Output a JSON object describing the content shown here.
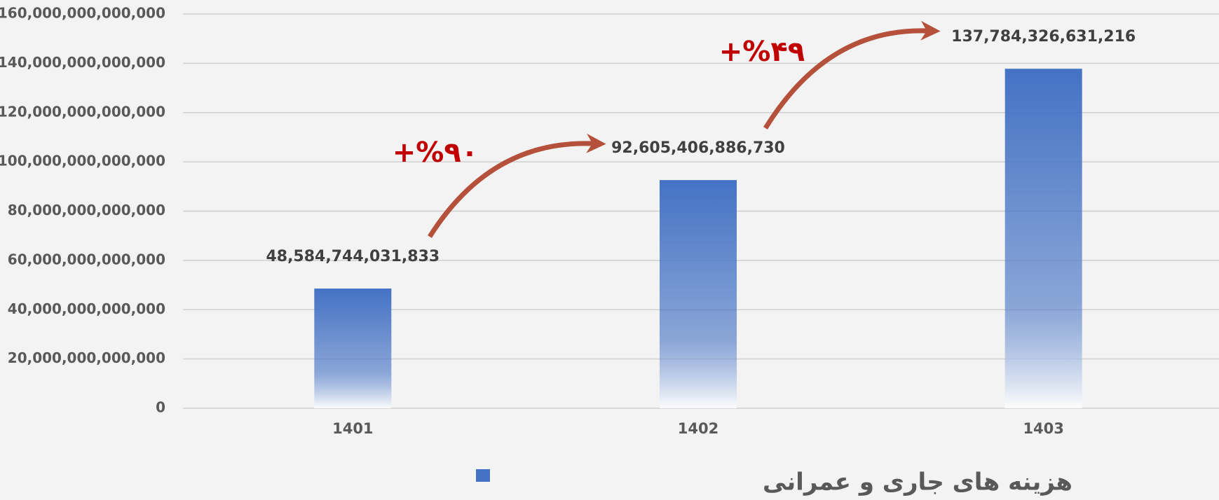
{
  "chart_data": {
    "type": "bar",
    "categories": [
      "1401",
      "1402",
      "1403"
    ],
    "series": [
      {
        "name": "هزینه های جاری و عمرانی",
        "color": "#4472c4",
        "values": [
          48584744031833,
          92605406886730,
          137784326631216
        ],
        "value_labels": [
          "48,584,744,031,833",
          "92,605,406,886,730",
          "137,784,326,631,216"
        ]
      }
    ],
    "ylim": [
      0,
      160000000000000
    ],
    "yticks": [
      0,
      {
        "value": 20000000000000,
        "label": "20,000,000,000,000"
      },
      {
        "value": 40000000000000,
        "label": "40,000,000,000,000"
      },
      {
        "value": 60000000000000,
        "label": "60,000,000,000,000"
      },
      {
        "value": 80000000000000,
        "label": "80,000,000,000,000"
      },
      {
        "value": 100000000000000,
        "label": "100,000,000,000,000"
      },
      {
        "value": 120000000000000,
        "label": "120,000,000,000,000"
      },
      {
        "value": 140000000000000,
        "label": "140,000,000,000,000"
      },
      {
        "value": 160000000000000,
        "label": "160,000,000,000,000"
      }
    ],
    "grid": true,
    "legend": "bottom",
    "annotations": [
      "+%۹۰",
      "+%۴۹"
    ]
  }
}
